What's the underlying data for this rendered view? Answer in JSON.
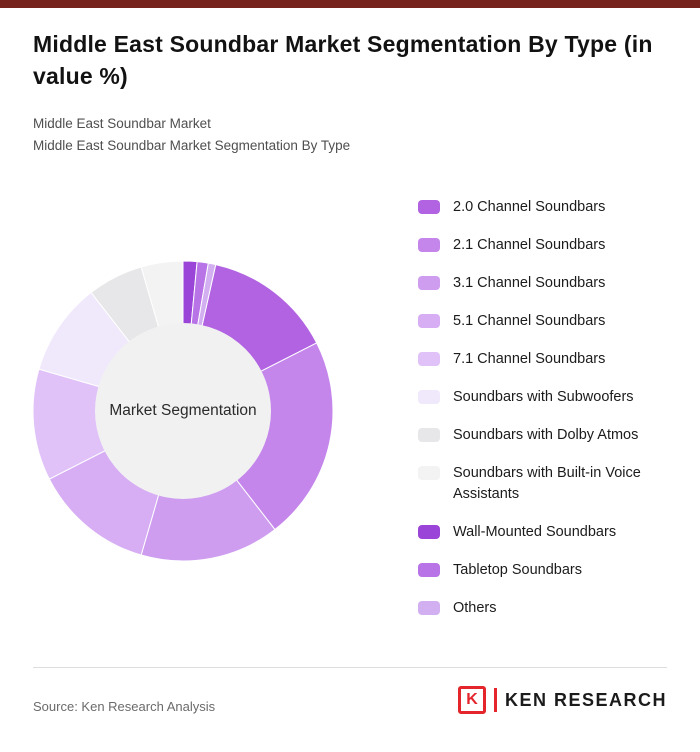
{
  "page": {
    "title": "Middle East Soundbar Market Segmentation By Type (in value %)",
    "subtitle1": "Middle East Soundbar Market",
    "subtitle2": "Middle East Soundbar Market Segmentation By Type"
  },
  "chart_data": {
    "type": "pie",
    "variant": "donut",
    "title": "Middle East Soundbar Market Segmentation By Type (in value %)",
    "center_label": "Market Segmentation",
    "legend_position": "right",
    "rotation_deg": 12.6,
    "segments": [
      {
        "label": "2.0 Channel Soundbars",
        "value": 14,
        "color": "#b163e2"
      },
      {
        "label": "2.1 Channel Soundbars",
        "value": 22,
        "color": "#c586ec"
      },
      {
        "label": "3.1 Channel Soundbars",
        "value": 15,
        "color": "#cf9df0"
      },
      {
        "label": "5.1 Channel Soundbars",
        "value": 13,
        "color": "#d7aef4"
      },
      {
        "label": "7.1 Channel Soundbars",
        "value": 12,
        "color": "#e0c2f8"
      },
      {
        "label": "Soundbars with Subwoofers",
        "value": 10,
        "color": "#f0e8fb"
      },
      {
        "label": "Soundbars with Dolby Atmos",
        "value": 6,
        "color": "#e7e7e9"
      },
      {
        "label": "Soundbars with Built-in Voice Assistants",
        "value": 4.5,
        "color": "#f3f3f4"
      },
      {
        "label": "Wall-Mounted Soundbars",
        "value": 1.5,
        "color": "#9b44d8"
      },
      {
        "label": "Tabletop Soundbars",
        "value": 1.2,
        "color": "#b873e7"
      },
      {
        "label": "Others",
        "value": 0.8,
        "color": "#d2aff1"
      }
    ]
  },
  "footer": {
    "source": "Source: Ken Research Analysis",
    "brand": {
      "icon_letter": "K",
      "name": "KEN RESEARCH"
    }
  }
}
